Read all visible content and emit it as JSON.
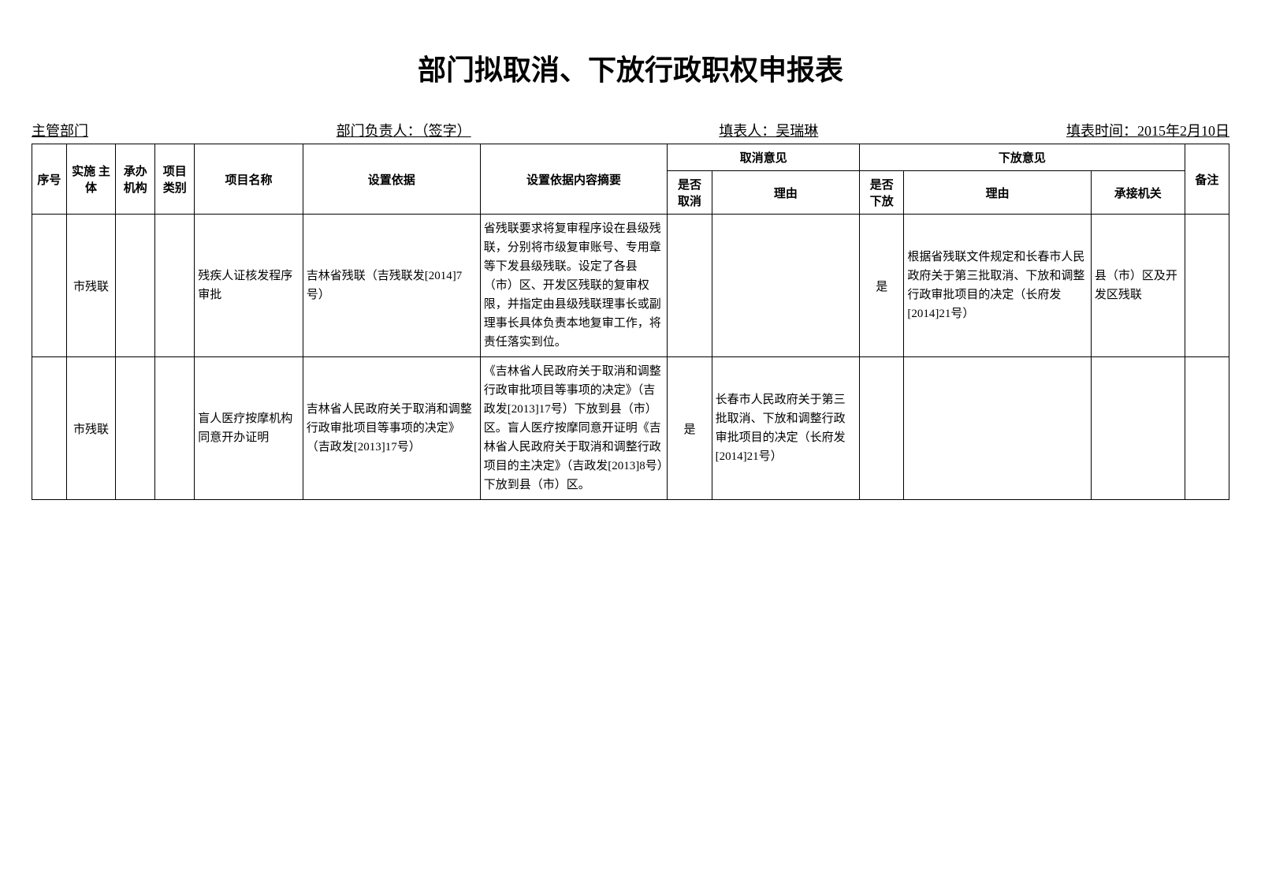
{
  "title": "部门拟取消、下放行政职权申报表",
  "header": {
    "dept_label": "主管部门",
    "dept_value": "",
    "leader_label": "部门负责人：（签字）",
    "leader_value": "",
    "filler_label": "填表人：吴瑞琳",
    "date_label": "填表时间：2015年2月10日"
  },
  "columns": {
    "seq": "序号",
    "entity": "实施\n主体",
    "agency": "承办\n机构",
    "category": "项目\n类别",
    "name": "项目名称",
    "basis": "设置依据",
    "summary": "设置依据内容摘要",
    "cancel_group": "取消意见",
    "cancel_yn": "是否\n取消",
    "cancel_reason": "理由",
    "delegate_group": "下放意见",
    "delegate_yn": "是否\n下放",
    "delegate_reason": "理由",
    "receiver": "承接机关",
    "remark": "备注"
  },
  "rows": [
    {
      "seq": "",
      "entity": "市残联",
      "agency": "",
      "category": "",
      "name": "残疾人证核发程序审批",
      "basis": "吉林省残联（吉残联发[2014]7号）",
      "summary": "省残联要求将复审程序设在县级残联，分别将市级复审账号、专用章等下发县级残联。设定了各县（市）区、开发区残联的复审权限，并指定由县级残联理事长或副理事长具体负责本地复审工作，将责任落实到位。",
      "cancel_yn": "",
      "cancel_reason": "",
      "delegate_yn": "是",
      "delegate_reason": "根据省残联文件规定和长春市人民政府关于第三批取消、下放和调整行政审批项目的决定（长府发[2014]21号）",
      "receiver": "县（市）区及开发区残联",
      "remark": ""
    },
    {
      "seq": "",
      "entity": "市残联",
      "agency": "",
      "category": "",
      "name": "盲人医疗按摩机构同意开办证明",
      "basis": "吉林省人民政府关于取消和调整行政审批项目等事项的决定》（吉政发[2013]17号）",
      "summary": "《吉林省人民政府关于取消和调整行政审批项目等事项的决定》（吉政发[2013]17号）下放到县（市）区。盲人医疗按摩同意开证明《吉林省人民政府关于取消和调整行政项目的主决定》（吉政发[2013]8号）下放到县（市）区。",
      "cancel_yn": "是",
      "cancel_reason": "长春市人民政府关于第三批取消、下放和调整行政审批项目的决定（长府发[2014]21号）",
      "delegate_yn": "",
      "delegate_reason": "",
      "receiver": "",
      "remark": ""
    }
  ],
  "styling": {
    "title_fontsize": 36,
    "body_fontsize": 15,
    "header_fontsize": 18,
    "border_color": "#000000",
    "background_color": "#ffffff",
    "text_color": "#000000",
    "font_family": "SimSun"
  }
}
